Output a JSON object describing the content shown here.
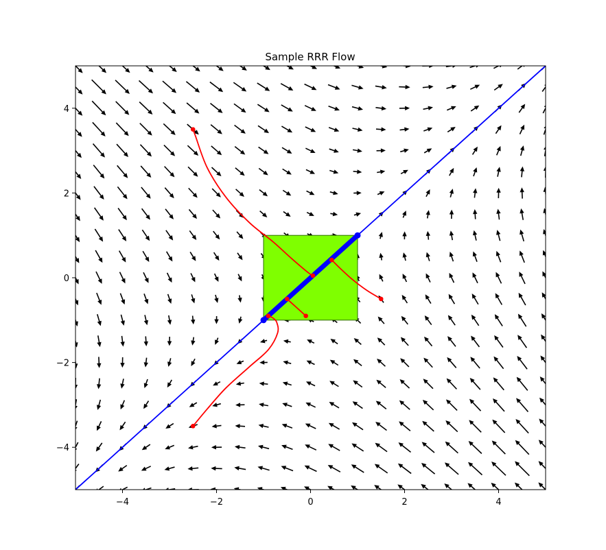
{
  "chart_data": {
    "type": "quiver",
    "title": "Sample RRR Flow",
    "xlabel": "",
    "ylabel": "",
    "xlim": [
      -5,
      5
    ],
    "ylim": [
      -5,
      5
    ],
    "grid": false,
    "x_ticks": [
      -4,
      -2,
      0,
      2,
      4
    ],
    "y_ticks": [
      -4,
      -2,
      0,
      2,
      4
    ],
    "x_tick_labels": [
      "−4",
      "−2",
      "0",
      "2",
      "4"
    ],
    "y_tick_labels": [
      "−4",
      "−2",
      "0",
      "2",
      "4"
    ],
    "vector_field": {
      "grid_min": -5,
      "grid_max": 5,
      "grid_count": 21,
      "arrow_color": "#000000",
      "description_of_field": "attracted toward diagonal y=x, flow along diagonal"
    },
    "feasible_box": {
      "x": [
        -1,
        1
      ],
      "y": [
        -1,
        1
      ],
      "color": "#7fff00",
      "edge_color": "#2e6b00"
    },
    "diagonal_line": {
      "x": [
        -5,
        5
      ],
      "y": [
        -5,
        5
      ],
      "color": "#0000ff"
    },
    "diagonal_segment": {
      "x": [
        -1,
        1
      ],
      "y": [
        -1,
        1
      ],
      "color": "#0000ff"
    },
    "trajectory_color": "#ff0000",
    "trajectories": [
      {
        "name": "traj-1",
        "x": [
          -2.5,
          -2.45,
          -2.2,
          -1.8,
          -1.3,
          -0.8,
          -0.4,
          -0.05,
          0.05
        ],
        "y": [
          3.5,
          3.35,
          2.6,
          1.9,
          1.3,
          0.85,
          0.45,
          0.12,
          0.05
        ]
      },
      {
        "name": "traj-2",
        "x": [
          1.5,
          1.2,
          0.9,
          0.65,
          0.45
        ],
        "y": [
          -0.5,
          -0.3,
          -0.05,
          0.2,
          0.42
        ]
      },
      {
        "name": "traj-3",
        "x": [
          -0.1,
          -0.3,
          -0.5
        ],
        "y": [
          -0.9,
          -0.7,
          -0.5
        ]
      },
      {
        "name": "traj-4",
        "x": [
          -2.5,
          -2.2,
          -1.8,
          -1.3,
          -0.9,
          -0.7,
          -0.72,
          -0.8,
          -0.9
        ],
        "y": [
          -3.5,
          -3.1,
          -2.6,
          -2.1,
          -1.7,
          -1.3,
          -1.05,
          -0.95,
          -0.9
        ]
      }
    ],
    "trajectory_endpoints": [
      {
        "x": -2.5,
        "y": 3.5
      },
      {
        "x": 0.05,
        "y": 0.05
      },
      {
        "x": 1.5,
        "y": -0.5
      },
      {
        "x": 0.45,
        "y": 0.42
      },
      {
        "x": -0.1,
        "y": -0.9
      },
      {
        "x": -0.5,
        "y": -0.5
      },
      {
        "x": -2.5,
        "y": -3.5
      },
      {
        "x": -0.9,
        "y": -0.9
      }
    ]
  }
}
